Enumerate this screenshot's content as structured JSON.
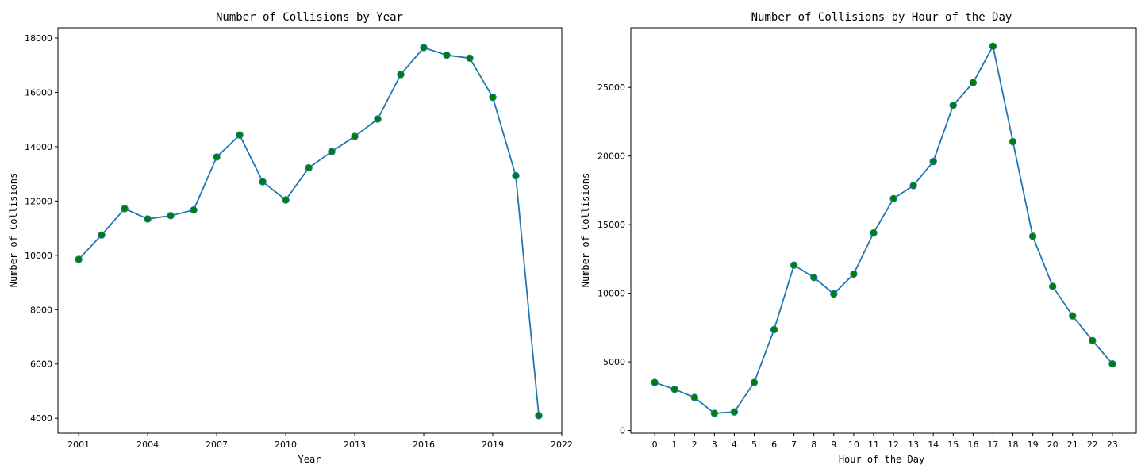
{
  "colors": {
    "line": "#1f77b4",
    "marker": "#008000"
  },
  "chart_data": [
    {
      "type": "line",
      "title": "Number of Collisions by Year",
      "xlabel": "Year",
      "ylabel": "Number of Collisions",
      "xlim": [
        2000.1,
        2022
      ],
      "ylim": [
        3450,
        18380
      ],
      "xticks": [
        2001,
        2004,
        2007,
        2010,
        2013,
        2016,
        2019,
        2022
      ],
      "yticks": [
        4000,
        6000,
        8000,
        10000,
        12000,
        14000,
        16000,
        18000
      ],
      "grid": false,
      "x": [
        2001,
        2002,
        2003,
        2004,
        2005,
        2006,
        2007,
        2008,
        2009,
        2010,
        2011,
        2012,
        2013,
        2014,
        2015,
        2016,
        2017,
        2018,
        2019,
        2020,
        2021
      ],
      "y": [
        9850,
        10750,
        11720,
        11340,
        11460,
        11670,
        13620,
        14430,
        12710,
        12040,
        13220,
        13820,
        14380,
        15020,
        16660,
        17650,
        17370,
        17260,
        15820,
        12930,
        4100
      ]
    },
    {
      "type": "line",
      "title": "Number of Collisions by Hour of the Day",
      "xlabel": "Hour of the Day",
      "ylabel": "Number of Collisions",
      "xlim": [
        -1.2,
        24.2
      ],
      "ylim": [
        -200,
        29350
      ],
      "xticks": [
        0,
        1,
        2,
        3,
        4,
        5,
        6,
        7,
        8,
        9,
        10,
        11,
        12,
        13,
        14,
        15,
        16,
        17,
        18,
        19,
        20,
        21,
        22,
        23
      ],
      "yticks": [
        0,
        5000,
        10000,
        15000,
        20000,
        25000
      ],
      "grid": false,
      "x": [
        0,
        1,
        2,
        3,
        4,
        5,
        6,
        7,
        8,
        9,
        10,
        11,
        12,
        13,
        14,
        15,
        16,
        17,
        18,
        19,
        20,
        21,
        22,
        23
      ],
      "y": [
        3500,
        3000,
        2400,
        1250,
        1350,
        3500,
        7350,
        12050,
        11150,
        9950,
        11400,
        14400,
        16900,
        17850,
        19600,
        23700,
        25350,
        28000,
        21050,
        14150,
        10500,
        8350,
        6550,
        4850
      ]
    }
  ]
}
